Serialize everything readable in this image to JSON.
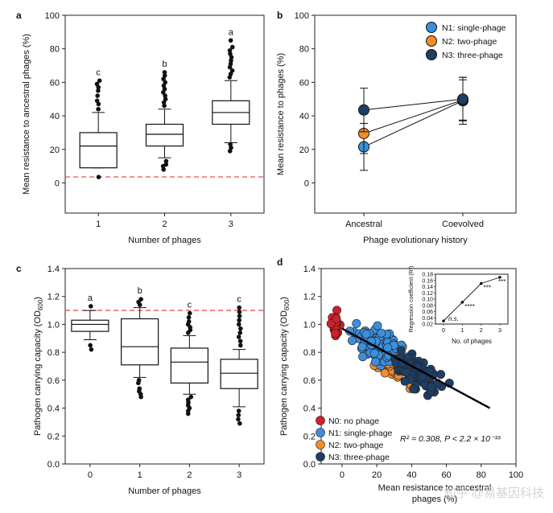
{
  "panels": [
    {
      "id": "a",
      "type": "box",
      "ylabel": "Mean resistance to ancestral phages (%)",
      "xlabel": "Number of phages",
      "categories": [
        "1",
        "2",
        "3"
      ],
      "letters": [
        "c",
        "b",
        "a"
      ],
      "yticks": [
        "0",
        "20",
        "40",
        "60",
        "80",
        "100"
      ],
      "ylim": [
        -18,
        100
      ],
      "xlim": [
        0.35,
        3.65
      ],
      "ref_line": 3.6,
      "boxes": [
        {
          "min": 9,
          "q1": 9,
          "median": 22,
          "q3": 30,
          "max": 42,
          "outliers_high": [
            44,
            47,
            49,
            52,
            55,
            57,
            59,
            61
          ],
          "outliers_low": [
            3.5
          ]
        },
        {
          "min": 15,
          "q1": 22,
          "median": 29,
          "q3": 35,
          "max": 44,
          "outliers_high": [
            46,
            48,
            50,
            52,
            54,
            56,
            58,
            60,
            62,
            64,
            66
          ],
          "outliers_low": [
            8,
            10,
            11,
            13
          ]
        },
        {
          "min": 24,
          "q1": 35,
          "median": 42,
          "q3": 49,
          "max": 61,
          "outliers_high": [
            63,
            65,
            67,
            69,
            71,
            73,
            75,
            77,
            79,
            81,
            85
          ],
          "outliers_low": [
            19,
            21,
            23
          ]
        }
      ]
    },
    {
      "id": "b",
      "type": "line",
      "ylabel": "Mean resistance to phages (%)",
      "xlabel": "Phage evolutionary history",
      "categories": [
        "Ancestral",
        "Coevolved"
      ],
      "yticks": [
        "0",
        "20",
        "40",
        "60",
        "80",
        "100"
      ],
      "ylim": [
        -18,
        100
      ],
      "legend": [
        "N1: single-phage",
        "N2: two-phage",
        "N3: three-phage"
      ],
      "series": [
        {
          "color": "#3b8fdd",
          "values": [
            21.5,
            49
          ],
          "err": [
            14,
            14
          ]
        },
        {
          "color": "#f08c2a",
          "values": [
            29.5,
            49.5
          ],
          "err": [
            12,
            12
          ]
        },
        {
          "color": "#1f3e66",
          "values": [
            43.5,
            50
          ],
          "err": [
            13,
            13
          ]
        }
      ]
    },
    {
      "id": "c",
      "type": "box",
      "ylabel": "Pathogen carrying capacity (OD600)",
      "xlabel": "Number of phages",
      "categories": [
        "0",
        "1",
        "2",
        "3"
      ],
      "letters": [
        "a",
        "b",
        "c",
        "c"
      ],
      "yticks": [
        "0.0",
        "0.2",
        "0.4",
        "0.6",
        "0.8",
        "1.0",
        "1.2",
        "1.4"
      ],
      "ylim": [
        0,
        1.4
      ],
      "ref_line": 1.1,
      "boxes": [
        {
          "min": 0.89,
          "q1": 0.95,
          "median": 1.0,
          "q3": 1.03,
          "max": 1.1,
          "outliers_high": [
            1.13
          ],
          "outliers_low": [
            0.85,
            0.82
          ]
        },
        {
          "min": 0.62,
          "q1": 0.71,
          "median": 0.84,
          "q3": 1.04,
          "max": 1.12,
          "outliers_high": [
            1.14,
            1.16,
            1.18
          ],
          "outliers_low": [
            0.6,
            0.58,
            0.54,
            0.52,
            0.5,
            0.48
          ]
        },
        {
          "min": 0.5,
          "q1": 0.58,
          "median": 0.73,
          "q3": 0.83,
          "max": 0.92,
          "outliers_high": [
            0.94,
            0.96,
            0.98,
            1.0,
            1.02,
            1.05,
            1.08
          ],
          "outliers_low": [
            0.48,
            0.46,
            0.44,
            0.42,
            0.4,
            0.38,
            0.36
          ]
        },
        {
          "min": 0.41,
          "q1": 0.54,
          "median": 0.65,
          "q3": 0.75,
          "max": 0.82,
          "outliers_high": [
            0.85,
            0.88,
            0.91,
            0.94,
            0.97,
            1.0,
            1.03,
            1.06,
            1.09,
            1.12
          ],
          "outliers_low": [
            0.38,
            0.35,
            0.32,
            0.29
          ]
        }
      ]
    },
    {
      "id": "d",
      "type": "scatter",
      "ylabel": "Pathogen carrying capacity (OD600)",
      "xlabel": "Mean resistance to ancestral phages (%)",
      "xticks": [
        "0",
        "20",
        "40",
        "60",
        "80",
        "100"
      ],
      "xlim": [
        -12,
        100
      ],
      "yticks": [
        "0.0",
        "0.2",
        "0.4",
        "0.6",
        "0.8",
        "1.0",
        "1.2",
        "1.4"
      ],
      "ylim": [
        0,
        1.4
      ],
      "legend": [
        "N0: no phage",
        "N1: single-phage",
        "N2: two-phage",
        "N3: three-phage"
      ],
      "colors": [
        "#d0202a",
        "#3b8fdd",
        "#f08c2a",
        "#1f3e66"
      ],
      "stat_text": "R² = 0.308,   P < 2.2 × 10⁻¹⁶",
      "regression": {
        "x": [
          0,
          85
        ],
        "y": [
          0.97,
          0.4
        ]
      },
      "inset": {
        "ylabel": "Regression coefficient (R²)",
        "xlabel": "No. of phages",
        "x": [
          0,
          1,
          2,
          3
        ],
        "y": [
          0.03,
          0.09,
          0.15,
          0.17
        ],
        "labels": [
          "n.s.",
          "****",
          "***",
          "***"
        ],
        "xticks": [
          "0",
          "1",
          "2",
          "3"
        ],
        "yticks": [
          "0.02",
          "0.04",
          "0.06",
          "0.08",
          "0.10",
          "0.12",
          "0.14",
          "0.16",
          "0.18"
        ],
        "ylim": [
          0.02,
          0.18
        ]
      }
    }
  ],
  "watermark": "知乎 @易基因科技"
}
